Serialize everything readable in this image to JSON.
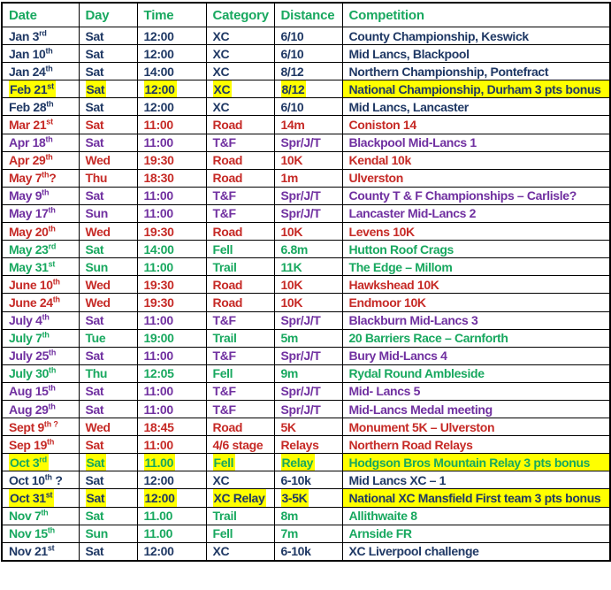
{
  "colors": {
    "header": "#18A85F",
    "navy": "#1F3864",
    "red": "#C62A26",
    "purple": "#7030A0",
    "green": "#18A85F",
    "highlight": "#FFFF00",
    "grid": "#000000"
  },
  "table": {
    "columns": [
      {
        "key": "date",
        "label": "Date"
      },
      {
        "key": "day",
        "label": "Day"
      },
      {
        "key": "time",
        "label": "Time"
      },
      {
        "key": "category",
        "label": "Category"
      },
      {
        "key": "distance",
        "label": "Distance"
      },
      {
        "key": "competition",
        "label": "Competition"
      }
    ],
    "rows": [
      {
        "date": "Jan 3",
        "ordinal": "rd",
        "date_suffix": "",
        "day": "Sat",
        "time": "12:00",
        "category": "XC",
        "distance": "6/10",
        "competition": "County Championship, Keswick",
        "color": "navy",
        "highlight": false
      },
      {
        "date": "Jan 10",
        "ordinal": "th",
        "date_suffix": "",
        "day": "Sat",
        "time": "12:00",
        "category": "XC",
        "distance": "6/10",
        "competition": "Mid Lancs, Blackpool",
        "color": "navy",
        "highlight": false
      },
      {
        "date": "Jan 24",
        "ordinal": "th",
        "date_suffix": "",
        "day": "Sat",
        "time": "14:00",
        "category": "XC",
        "distance": "8/12",
        "competition": "Northern Championship, Pontefract",
        "color": "navy",
        "highlight": false
      },
      {
        "date": "Feb 21",
        "ordinal": "st",
        "date_suffix": "",
        "day": "Sat",
        "time": "12:00",
        "category": "XC",
        "distance": "8/12",
        "competition": "National Championship, Durham 3 pts bonus",
        "color": "navy",
        "highlight": true
      },
      {
        "date": "Feb 28",
        "ordinal": "th",
        "date_suffix": "",
        "day": "Sat",
        "time": "12:00",
        "category": "XC",
        "distance": "6/10",
        "competition": "Mid Lancs, Lancaster",
        "color": "navy",
        "highlight": false
      },
      {
        "date": "Mar 21",
        "ordinal": "st",
        "date_suffix": "",
        "day": "Sat",
        "time": "11:00",
        "category": "Road",
        "distance": "14m",
        "competition": "Coniston 14",
        "color": "red",
        "highlight": false
      },
      {
        "date": "Apr 18",
        "ordinal": "th",
        "date_suffix": "",
        "day": "Sat",
        "time": "11:00",
        "category": "T&F",
        "distance": "Spr/J/T",
        "competition": "Blackpool Mid-Lancs 1",
        "color": "purple",
        "highlight": false
      },
      {
        "date": "Apr 29",
        "ordinal": "th",
        "date_suffix": "",
        "day": "Wed",
        "time": "19:30",
        "category": "Road",
        "distance": "10K",
        "competition": "Kendal 10k",
        "color": "red",
        "highlight": false
      },
      {
        "date": "May 7",
        "ordinal": "th",
        "date_suffix": "?",
        "day": "Thu",
        "time": "18:30",
        "category": "Road",
        "distance": "1m",
        "competition": "Ulverston",
        "color": "red",
        "highlight": false
      },
      {
        "date": "May 9",
        "ordinal": "th",
        "date_suffix": "",
        "day": "Sat",
        "time": "11:00",
        "category": "T&F",
        "distance": "Spr/J/T",
        "competition": "County T & F Championships – Carlisle?",
        "color": "purple",
        "highlight": false
      },
      {
        "date": "May 17",
        "ordinal": "th",
        "date_suffix": "",
        "day": "Sun",
        "time": "11:00",
        "category": "T&F",
        "distance": "Spr/J/T",
        "competition": "Lancaster Mid-Lancs 2",
        "color": "purple",
        "highlight": false
      },
      {
        "date": "May 20",
        "ordinal": "th",
        "date_suffix": "",
        "day": "Wed",
        "time": "19:30",
        "category": "Road",
        "distance": "10K",
        "competition": "Levens 10K",
        "color": "red",
        "highlight": false
      },
      {
        "date": "May 23",
        "ordinal": "rd",
        "date_suffix": "",
        "day": "Sat",
        "time": "14:00",
        "category": "Fell",
        "distance": "6.8m",
        "competition": "Hutton Roof Crags",
        "color": "green",
        "highlight": false
      },
      {
        "date": "May 31",
        "ordinal": "st",
        "date_suffix": "",
        "day": "Sun",
        "time": "11:00",
        "category": "Trail",
        "distance": "11K",
        "competition": "The Edge – Millom",
        "color": "green",
        "highlight": false
      },
      {
        "date": "June 10",
        "ordinal": "th",
        "date_suffix": "",
        "day": "Wed",
        "time": "19:30",
        "category": "Road",
        "distance": "10K",
        "competition": "Hawkshead 10K",
        "color": "red",
        "highlight": false
      },
      {
        "date": "June 24",
        "ordinal": "th",
        "date_suffix": "",
        "day": "Wed",
        "time": "19:30",
        "category": "Road",
        "distance": "10K",
        "competition": "Endmoor 10K",
        "color": "red",
        "highlight": false
      },
      {
        "date": "July 4",
        "ordinal": "th",
        "date_suffix": "",
        "day": "Sat",
        "time": "11:00",
        "category": "T&F",
        "distance": "Spr/J/T",
        "competition": "Blackburn Mid-Lancs 3",
        "color": "purple",
        "highlight": false
      },
      {
        "date": "July 7",
        "ordinal": "th",
        "date_suffix": "",
        "day": "Tue",
        "time": "19:00",
        "category": "Trail",
        "distance": "5m",
        "competition": "20 Barriers Race – Carnforth",
        "color": "green",
        "highlight": false
      },
      {
        "date": "July 25",
        "ordinal": "th",
        "date_suffix": "",
        "day": "Sat",
        "time": "11:00",
        "category": "T&F",
        "distance": "Spr/J/T",
        "competition": "Bury Mid-Lancs 4",
        "color": "purple",
        "highlight": false
      },
      {
        "date": "July 30",
        "ordinal": "th",
        "date_suffix": "",
        "day": "Thu",
        "time": "12:05",
        "category": "Fell",
        "distance": "9m",
        "competition": "Rydal Round Ambleside",
        "color": "green",
        "highlight": false
      },
      {
        "date": "Aug 15",
        "ordinal": "th",
        "date_suffix": "",
        "day": "Sat",
        "time": "11:00",
        "category": "T&F",
        "distance": "Spr/J/T",
        "competition": "Mid- Lancs 5",
        "color": "purple",
        "highlight": false
      },
      {
        "date": "Aug 29",
        "ordinal": "th",
        "date_suffix": "",
        "day": "Sat",
        "time": "11:00",
        "category": "T&F",
        "distance": "Spr/J/T",
        "competition": "Mid-Lancs Medal meeting",
        "color": "purple",
        "highlight": false
      },
      {
        "date": "Sept 9",
        "ordinal": "th ?",
        "date_suffix": "",
        "day": "Wed",
        "time": "18:45",
        "category": "Road",
        "distance": "5K",
        "competition": "Monument 5K – Ulverston",
        "color": "red",
        "highlight": false
      },
      {
        "date": "Sep 19",
        "ordinal": "th",
        "date_suffix": "",
        "day": "Sat",
        "time": "11:00",
        "category": "4/6 stage",
        "distance": "Relays",
        "competition": "Northern Road Relays",
        "color": "red",
        "highlight": false
      },
      {
        "date": "Oct 3",
        "ordinal": "rd",
        "date_suffix": "",
        "day": "Sat",
        "time": "11.00",
        "category": "Fell",
        "distance": "Relay",
        "competition": "Hodgson Bros Mountain Relay 3 pts bonus",
        "color": "green",
        "highlight": true
      },
      {
        "date": "Oct 10",
        "ordinal": "th",
        "date_suffix": " ?",
        "day": "Sat",
        "time": "12:00",
        "category": "XC",
        "distance": "6-10k",
        "competition": "Mid Lancs XC – 1",
        "color": "navy",
        "highlight": false
      },
      {
        "date": "Oct 31",
        "ordinal": "st",
        "date_suffix": "",
        "day": "Sat",
        "time": "12:00",
        "category": "XC Relay",
        "distance": "3-5K",
        "competition": "National XC Mansfield First team 3 pts bonus",
        "color": "navy",
        "highlight": true
      },
      {
        "date": "Nov 7",
        "ordinal": "th",
        "date_suffix": "",
        "day": "Sat",
        "time": "11.00",
        "category": "Trail",
        "distance": "8m",
        "competition": "Allithwaite 8",
        "color": "green",
        "highlight": false
      },
      {
        "date": "Nov 15",
        "ordinal": "th",
        "date_suffix": "",
        "day": "Sun",
        "time": "11.00",
        "category": "Fell",
        "distance": "7m",
        "competition": "Arnside FR",
        "color": "green",
        "highlight": false
      },
      {
        "date": "Nov 21",
        "ordinal": "st",
        "date_suffix": "",
        "day": "Sat",
        "time": "12:00",
        "category": "XC",
        "distance": "6-10k",
        "competition": "XC Liverpool challenge",
        "color": "navy",
        "highlight": false
      }
    ]
  }
}
